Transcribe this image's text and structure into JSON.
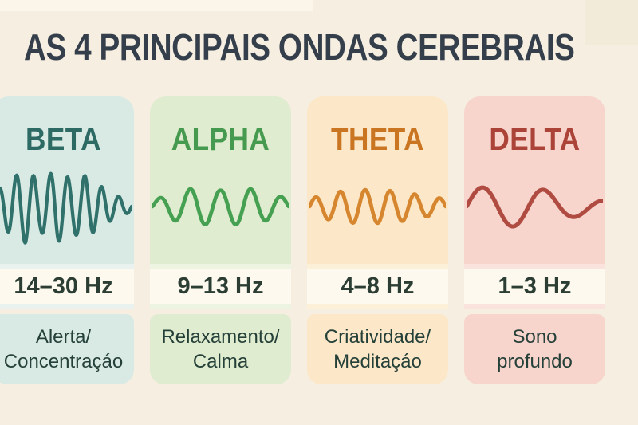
{
  "page": {
    "title": "AS 4 PRINCIPAIS ONDAS CEREBRAIS",
    "background": "#f6efe1",
    "title_color": "#343f4b",
    "patch_top_left": "#fbf5ea",
    "patch_top_right": "#f1e7d4"
  },
  "strip": {
    "bg": "#fdf9ee",
    "text_color": "#2c3e33"
  },
  "description_text_color": "#254038",
  "cards": [
    {
      "id": "beta",
      "title": "BETA",
      "frequency": "14–30 Hz",
      "lines": [
        "Alerta/",
        "Concentraçáo"
      ],
      "wave_icon": "beta-fast-wave-icon",
      "colors": {
        "bg": "#d9eae4",
        "accent": "#2d6a64",
        "wave": "#30716b",
        "band": "#e9f2ee"
      },
      "wave": {
        "cycles": 8,
        "base": 46,
        "amps": [
          0.4,
          0.75,
          1.0,
          0.7,
          1.0,
          0.75,
          0.85,
          0.55,
          0.3,
          0.15
        ],
        "stroke_width": 4,
        "phase": 0
      }
    },
    {
      "id": "alpha",
      "title": "ALPHA",
      "frequency": "9–13 Hz",
      "lines": [
        "Relaxamento/",
        "Calma"
      ],
      "wave_icon": "alpha-medium-wave-icon",
      "colors": {
        "bg": "#dfecd0",
        "accent": "#459a4f",
        "wave": "#46a052",
        "band": "#edf4e1"
      },
      "wave": {
        "cycles": 4.5,
        "base": 24,
        "amps": [
          0.3,
          0.75,
          1.0,
          0.85,
          1.0,
          0.75,
          0.4
        ],
        "stroke_width": 4.5,
        "phase": 0
      }
    },
    {
      "id": "theta",
      "title": "THETA",
      "frequency": "4–8 Hz",
      "lines": [
        "Criatividade/",
        "Meditaçáo"
      ],
      "wave_icon": "theta-slow-wave-icon",
      "colors": {
        "bg": "#fce8c8",
        "accent": "#ca7522",
        "wave": "#d6862f",
        "band": "#fdf0d9"
      },
      "wave": {
        "cycles": 5.5,
        "base": 21,
        "amps": [
          0.45,
          0.85,
          1.0,
          1.0,
          0.9,
          0.65,
          0.45
        ],
        "stroke_width": 4.5,
        "phase": 0
      }
    },
    {
      "id": "delta",
      "title": "DELTA",
      "frequency": "1–3 Hz",
      "lines": [
        "Sono",
        "profundo"
      ],
      "wave_icon": "delta-slowest-wave-icon",
      "colors": {
        "bg": "#f7d5cd",
        "accent": "#ac4339",
        "wave": "#b04b41",
        "band": "#f9e3dc"
      },
      "wave": {
        "cycles": 2.2,
        "base": 26,
        "amps": [
          0.85,
          1.0,
          0.9,
          0.55,
          0.3
        ],
        "stroke_width": 5,
        "phase": 0
      }
    }
  ]
}
